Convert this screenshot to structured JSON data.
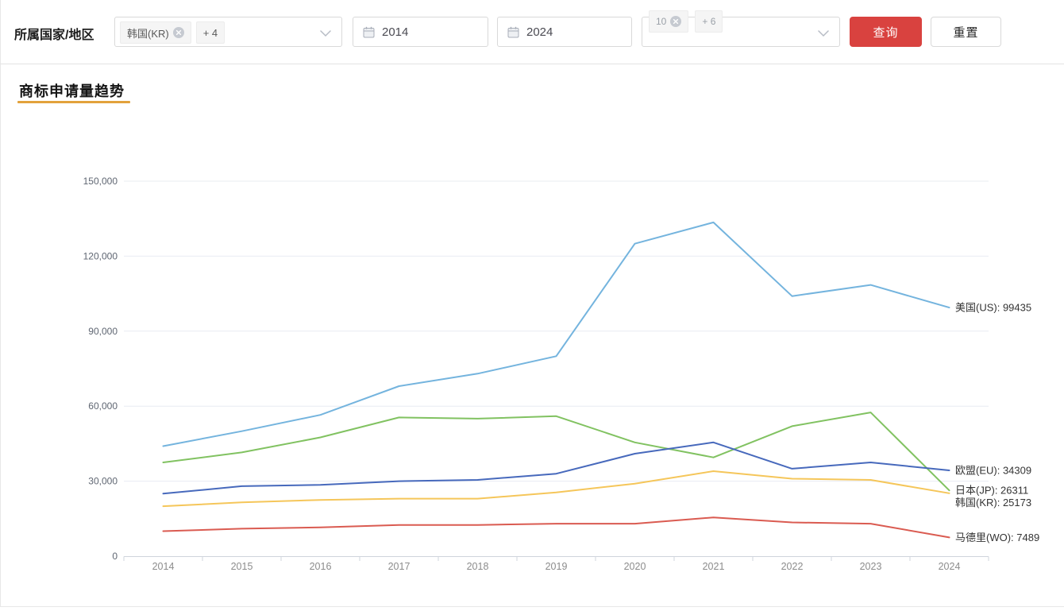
{
  "filter_bar": {
    "label": "所属国家/地区",
    "country_select": {
      "tags": [
        {
          "label": "韩国(KR)",
          "closable": true
        },
        {
          "label": "+ 4",
          "closable": false
        }
      ]
    },
    "start_year": {
      "value": "2014"
    },
    "end_year": {
      "value": "2024"
    },
    "extra_select": {
      "clipped_tags": [
        {
          "label": "10",
          "closable": true
        },
        {
          "label": "+ 6",
          "closable": false
        }
      ]
    },
    "query_button": "查询",
    "reset_button": "重置"
  },
  "section": {
    "title": "商标申请量趋势"
  },
  "colors": {
    "accent_underline": "#e2a23c",
    "query_button": "#d9423f",
    "grid": "#e8ecf2",
    "axis": "#cfd4dc",
    "axis_text": "#8c8c8c",
    "ytick_text": "#5f6672",
    "end_label_text": "#333333"
  },
  "chart_data": {
    "type": "line",
    "title": "商标申请量趋势",
    "categories": [
      "2014",
      "2015",
      "2016",
      "2017",
      "2018",
      "2019",
      "2020",
      "2021",
      "2022",
      "2023",
      "2024"
    ],
    "series": [
      {
        "name": "美国(US)",
        "color": "#74b4de",
        "values": [
          44000,
          50000,
          56500,
          68000,
          73000,
          80000,
          125000,
          133500,
          104000,
          108500,
          99435
        ]
      },
      {
        "name": "日本(JP)",
        "color": "#81c261",
        "values": [
          37500,
          41500,
          47500,
          55500,
          55000,
          56000,
          45500,
          39500,
          52000,
          57500,
          26311
        ]
      },
      {
        "name": "欧盟(EU)",
        "color": "#4769bc",
        "values": [
          25000,
          28000,
          28500,
          30000,
          30500,
          33000,
          41000,
          45500,
          35000,
          37500,
          34309
        ]
      },
      {
        "name": "韩国(KR)",
        "color": "#f5c65a",
        "values": [
          20000,
          21500,
          22500,
          23000,
          23000,
          25500,
          29000,
          34000,
          31000,
          30500,
          25173
        ]
      },
      {
        "name": "马德里(WO)",
        "color": "#da5b51",
        "values": [
          10000,
          11000,
          11500,
          12500,
          12500,
          13000,
          13000,
          15500,
          13500,
          13000,
          7489
        ]
      }
    ],
    "ylim": [
      0,
      150000
    ],
    "yticks": [
      0,
      30000,
      60000,
      90000,
      120000,
      150000
    ],
    "grid": true,
    "legend_position": "right-end-labels",
    "end_labels": [
      "美国(US): 99435",
      "欧盟(EU): 34309",
      "日本(JP): 26311",
      "韩国(KR): 25173",
      "马德里(WO): 7489"
    ]
  }
}
